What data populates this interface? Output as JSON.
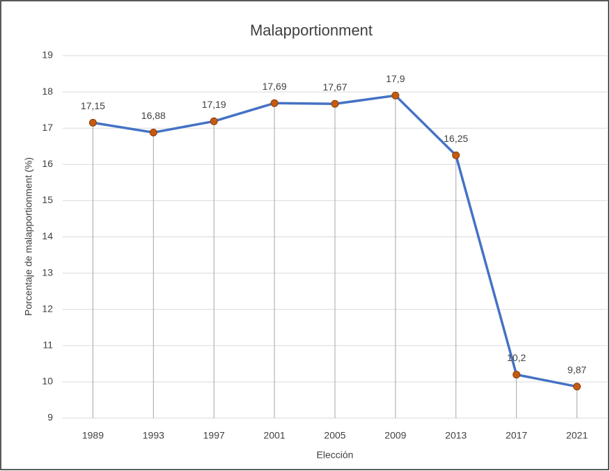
{
  "chart_data": {
    "type": "line",
    "title": "Malapportionment",
    "xlabel": "Elección",
    "ylabel": "Porcentaje de malapportionment (%)",
    "categories": [
      "1989",
      "1993",
      "1997",
      "2001",
      "2005",
      "2009",
      "2013",
      "2017",
      "2021"
    ],
    "series": [
      {
        "name": "Malapportionment",
        "color": "#4472c4",
        "marker_color": "#c55a11",
        "values": [
          17.15,
          16.88,
          17.19,
          17.69,
          17.67,
          17.9,
          16.25,
          10.2,
          9.87
        ],
        "value_labels": [
          "17,15",
          "16,88",
          "17,19",
          "17,69",
          "17,67",
          "17,9",
          "16,25",
          "10,2",
          "9,87"
        ]
      }
    ],
    "ylim": [
      9,
      19
    ],
    "yticks": [
      9,
      10,
      11,
      12,
      13,
      14,
      15,
      16,
      17,
      18,
      19
    ],
    "grid": true,
    "drop_lines": true
  }
}
